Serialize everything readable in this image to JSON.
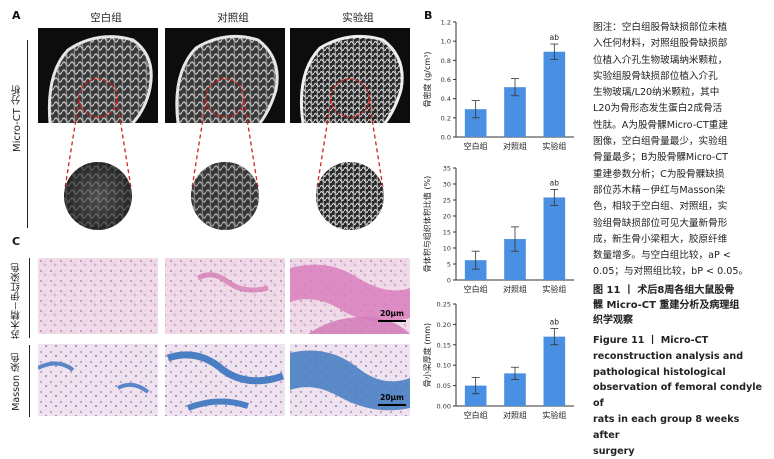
{
  "panel_a": {
    "letter": "A",
    "columns": [
      "空白组",
      "对照组",
      "实验组"
    ],
    "row_label": "Micro-CT 分析"
  },
  "panel_b": {
    "letter": "B"
  },
  "panel_c": {
    "letter": "C",
    "row_labels": [
      "苏木精－伊红染色",
      "Masson 染色"
    ],
    "scale_label": "20μm"
  },
  "colors": {
    "bar": "#4a90e2",
    "he_pink": "#d9a2c6",
    "masson_blue": "#4a7fc3"
  },
  "chart_data": [
    {
      "type": "bar",
      "categories": [
        "空白组",
        "对照组",
        "实验组"
      ],
      "values": [
        0.29,
        0.52,
        0.89
      ],
      "errors": [
        0.09,
        0.09,
        0.08
      ],
      "annotations": [
        "",
        "",
        "ab"
      ],
      "ylabel": "骨密度 (g/cm³)",
      "ylim": [
        0,
        1.2
      ],
      "yticks": [
        "0.0",
        "0.2",
        "0.4",
        "0.6",
        "0.8",
        "1.0",
        "1.2"
      ]
    },
    {
      "type": "bar",
      "categories": [
        "空白组",
        "对照组",
        "实验组"
      ],
      "values": [
        6.2,
        12.8,
        25.8
      ],
      "errors": [
        2.8,
        3.8,
        2.5
      ],
      "annotations": [
        "",
        "",
        "ab"
      ],
      "ylabel": "骨体积与组织体积比值 (%)",
      "ylim": [
        0,
        35
      ],
      "yticks": [
        "0",
        "5",
        "10",
        "15",
        "20",
        "25",
        "30",
        "35"
      ]
    },
    {
      "type": "bar",
      "categories": [
        "空白组",
        "对照组",
        "实验组"
      ],
      "values": [
        0.05,
        0.08,
        0.17
      ],
      "errors": [
        0.02,
        0.015,
        0.02
      ],
      "annotations": [
        "",
        "",
        "ab"
      ],
      "ylabel": "骨小梁厚度 (mm)",
      "ylim": [
        0,
        0.25
      ],
      "yticks": [
        "0.00",
        "0.05",
        "0.10",
        "0.15",
        "0.20",
        "0.25"
      ]
    }
  ],
  "caption": {
    "lines": [
      "图注：空白组股骨缺损部位未植",
      "入任何材料，对照组股骨缺损部",
      "位植入介孔生物玻璃纳米颗粒，",
      "实验组股骨缺损部位植入介孔",
      "生物玻璃/L20纳米颗粒，其中",
      "L20为骨形态发生蛋白2成骨活",
      "性肽。A为股骨髁Micro-CT重建",
      "图像，空白组骨量最少，实验组",
      "骨量最多；B为股骨髁Micro-CT",
      "重建参数分析；C为股骨髁缺损",
      "部位苏木精－伊红与Masson染",
      "色，相较于空白组、对照组，实",
      "验组骨缺损部位可见大量新骨形",
      "成，新生骨小梁粗大，胶原纤维",
      "数量增多。与空白组比较，aP <",
      "0.05；与对照组比较，bP < 0.05。"
    ]
  },
  "figure_title_cn": [
    "图 11 丨 术后8周各组大鼠股骨",
    "髁 Micro-CT 重建分析及病理组",
    "织学观察"
  ],
  "figure_title_en": [
    "Figure 11 丨 Micro-CT",
    "reconstruction analysis and",
    "pathological histological",
    "observation of femoral condyle of",
    "rats in each group 8 weeks after",
    "surgery"
  ]
}
